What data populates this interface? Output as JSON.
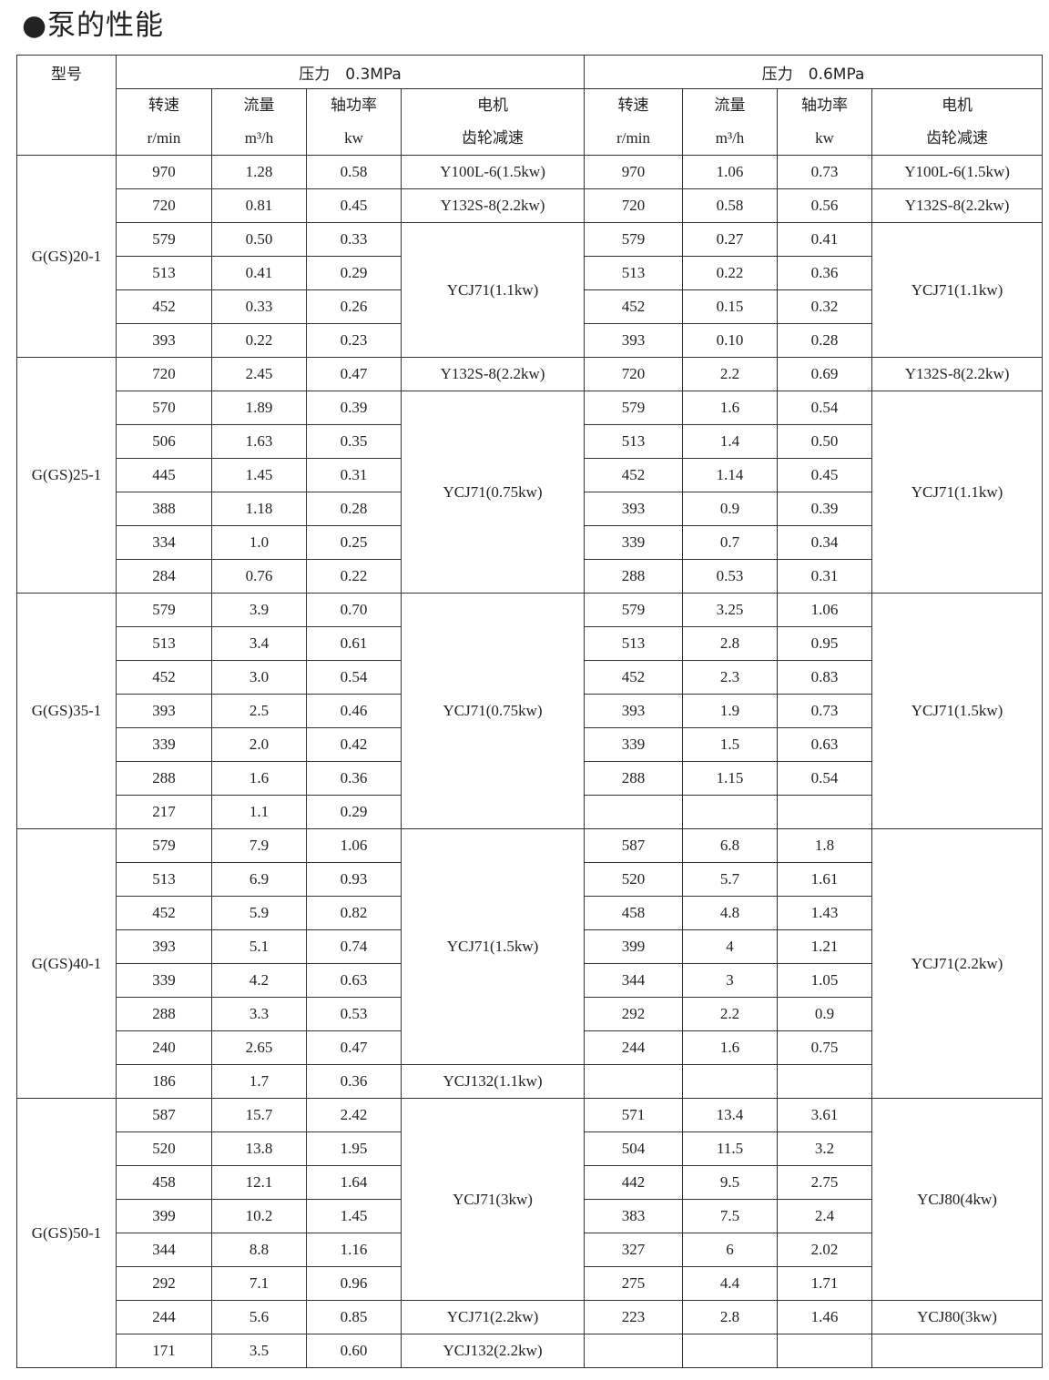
{
  "title": "●泵的性能",
  "header": {
    "model": "型号",
    "pressure_left": "压力　0.3MPa",
    "pressure_right": "压力　0.6MPa",
    "columns": [
      {
        "name": "转速",
        "unit": "r/min"
      },
      {
        "name": "流量",
        "unit": "m³/h"
      },
      {
        "name": "轴功率",
        "unit": "kw"
      },
      {
        "name": "电机",
        "unit": "齿轮减速"
      }
    ]
  },
  "groups": [
    {
      "model": "G(GS)20-1",
      "rows": [
        {
          "left": [
            "970",
            "1.28",
            "0.58"
          ],
          "right": [
            "970",
            "1.06",
            "0.73"
          ]
        },
        {
          "left": [
            "720",
            "0.81",
            "0.45"
          ],
          "right": [
            "720",
            "0.58",
            "0.56"
          ]
        },
        {
          "left": [
            "579",
            "0.50",
            "0.33"
          ],
          "right": [
            "579",
            "0.27",
            "0.41"
          ]
        },
        {
          "left": [
            "513",
            "0.41",
            "0.29"
          ],
          "right": [
            "513",
            "0.22",
            "0.36"
          ]
        },
        {
          "left": [
            "452",
            "0.33",
            "0.26"
          ],
          "right": [
            "452",
            "0.15",
            "0.32"
          ]
        },
        {
          "left": [
            "393",
            "0.22",
            "0.23"
          ],
          "right": [
            "393",
            "0.10",
            "0.28"
          ]
        }
      ],
      "left_motors": [
        {
          "label": "Y100L-6(1.5kw)",
          "rows": 1
        },
        {
          "label": "Y132S-8(2.2kw)",
          "rows": 1
        },
        {
          "label": "YCJ71(1.1kw)",
          "rows": 4
        }
      ],
      "right_motors": [
        {
          "label": "Y100L-6(1.5kw)",
          "rows": 1
        },
        {
          "label": "Y132S-8(2.2kw)",
          "rows": 1
        },
        {
          "label": "YCJ71(1.1kw)",
          "rows": 4
        }
      ]
    },
    {
      "model": "G(GS)25-1",
      "rows": [
        {
          "left": [
            "720",
            "2.45",
            "0.47"
          ],
          "right": [
            "720",
            "2.2",
            "0.69"
          ]
        },
        {
          "left": [
            "570",
            "1.89",
            "0.39"
          ],
          "right": [
            "579",
            "1.6",
            "0.54"
          ]
        },
        {
          "left": [
            "506",
            "1.63",
            "0.35"
          ],
          "right": [
            "513",
            "1.4",
            "0.50"
          ]
        },
        {
          "left": [
            "445",
            "1.45",
            "0.31"
          ],
          "right": [
            "452",
            "1.14",
            "0.45"
          ]
        },
        {
          "left": [
            "388",
            "1.18",
            "0.28"
          ],
          "right": [
            "393",
            "0.9",
            "0.39"
          ]
        },
        {
          "left": [
            "334",
            "1.0",
            "0.25"
          ],
          "right": [
            "339",
            "0.7",
            "0.34"
          ]
        },
        {
          "left": [
            "284",
            "0.76",
            "0.22"
          ],
          "right": [
            "288",
            "0.53",
            "0.31"
          ]
        }
      ],
      "left_motors": [
        {
          "label": "Y132S-8(2.2kw)",
          "rows": 1
        },
        {
          "label": "YCJ71(0.75kw)",
          "rows": 6
        }
      ],
      "right_motors": [
        {
          "label": "Y132S-8(2.2kw)",
          "rows": 1
        },
        {
          "label": "YCJ71(1.1kw)",
          "rows": 6
        }
      ]
    },
    {
      "model": "G(GS)35-1",
      "rows": [
        {
          "left": [
            "579",
            "3.9",
            "0.70"
          ],
          "right": [
            "579",
            "3.25",
            "1.06"
          ]
        },
        {
          "left": [
            "513",
            "3.4",
            "0.61"
          ],
          "right": [
            "513",
            "2.8",
            "0.95"
          ]
        },
        {
          "left": [
            "452",
            "3.0",
            "0.54"
          ],
          "right": [
            "452",
            "2.3",
            "0.83"
          ]
        },
        {
          "left": [
            "393",
            "2.5",
            "0.46"
          ],
          "right": [
            "393",
            "1.9",
            "0.73"
          ]
        },
        {
          "left": [
            "339",
            "2.0",
            "0.42"
          ],
          "right": [
            "339",
            "1.5",
            "0.63"
          ]
        },
        {
          "left": [
            "288",
            "1.6",
            "0.36"
          ],
          "right": [
            "288",
            "1.15",
            "0.54"
          ]
        },
        {
          "left": [
            "217",
            "1.1",
            "0.29"
          ],
          "right": [
            "",
            "",
            ""
          ]
        }
      ],
      "left_motors": [
        {
          "label": "YCJ71(0.75kw)",
          "rows": 7
        }
      ],
      "right_motors": [
        {
          "label": "YCJ71(1.5kw)",
          "rows": 7
        }
      ]
    },
    {
      "model": "G(GS)40-1",
      "rows": [
        {
          "left": [
            "579",
            "7.9",
            "1.06"
          ],
          "right": [
            "587",
            "6.8",
            "1.8"
          ]
        },
        {
          "left": [
            "513",
            "6.9",
            "0.93"
          ],
          "right": [
            "520",
            "5.7",
            "1.61"
          ]
        },
        {
          "left": [
            "452",
            "5.9",
            "0.82"
          ],
          "right": [
            "458",
            "4.8",
            "1.43"
          ]
        },
        {
          "left": [
            "393",
            "5.1",
            "0.74"
          ],
          "right": [
            "399",
            "4",
            "1.21"
          ]
        },
        {
          "left": [
            "339",
            "4.2",
            "0.63"
          ],
          "right": [
            "344",
            "3",
            "1.05"
          ]
        },
        {
          "left": [
            "288",
            "3.3",
            "0.53"
          ],
          "right": [
            "292",
            "2.2",
            "0.9"
          ]
        },
        {
          "left": [
            "240",
            "2.65",
            "0.47"
          ],
          "right": [
            "244",
            "1.6",
            "0.75"
          ]
        },
        {
          "left": [
            "186",
            "1.7",
            "0.36"
          ],
          "right": [
            "",
            "",
            ""
          ]
        }
      ],
      "left_motors": [
        {
          "label": "YCJ71(1.5kw)",
          "rows": 7
        },
        {
          "label": "YCJ132(1.1kw)",
          "rows": 1
        }
      ],
      "right_motors": [
        {
          "label": "YCJ71(2.2kw)",
          "rows": 8
        }
      ]
    },
    {
      "model": "G(GS)50-1",
      "rows": [
        {
          "left": [
            "587",
            "15.7",
            "2.42"
          ],
          "right": [
            "571",
            "13.4",
            "3.61"
          ]
        },
        {
          "left": [
            "520",
            "13.8",
            "1.95"
          ],
          "right": [
            "504",
            "11.5",
            "3.2"
          ]
        },
        {
          "left": [
            "458",
            "12.1",
            "1.64"
          ],
          "right": [
            "442",
            "9.5",
            "2.75"
          ]
        },
        {
          "left": [
            "399",
            "10.2",
            "1.45"
          ],
          "right": [
            "383",
            "7.5",
            "2.4"
          ]
        },
        {
          "left": [
            "344",
            "8.8",
            "1.16"
          ],
          "right": [
            "327",
            "6",
            "2.02"
          ]
        },
        {
          "left": [
            "292",
            "7.1",
            "0.96"
          ],
          "right": [
            "275",
            "4.4",
            "1.71"
          ]
        },
        {
          "left": [
            "244",
            "5.6",
            "0.85"
          ],
          "right": [
            "223",
            "2.8",
            "1.46"
          ]
        },
        {
          "left": [
            "171",
            "3.5",
            "0.60"
          ],
          "right": [
            "",
            "",
            ""
          ]
        }
      ],
      "left_motors": [
        {
          "label": "YCJ71(3kw)",
          "rows": 6
        },
        {
          "label": "YCJ71(2.2kw)",
          "rows": 1
        },
        {
          "label": "YCJ132(2.2kw)",
          "rows": 1
        }
      ],
      "right_motors": [
        {
          "label": "YCJ80(4kw)",
          "rows": 6
        },
        {
          "label": "YCJ80(3kw)",
          "rows": 1
        },
        {
          "label": "",
          "rows": 1
        }
      ]
    }
  ]
}
